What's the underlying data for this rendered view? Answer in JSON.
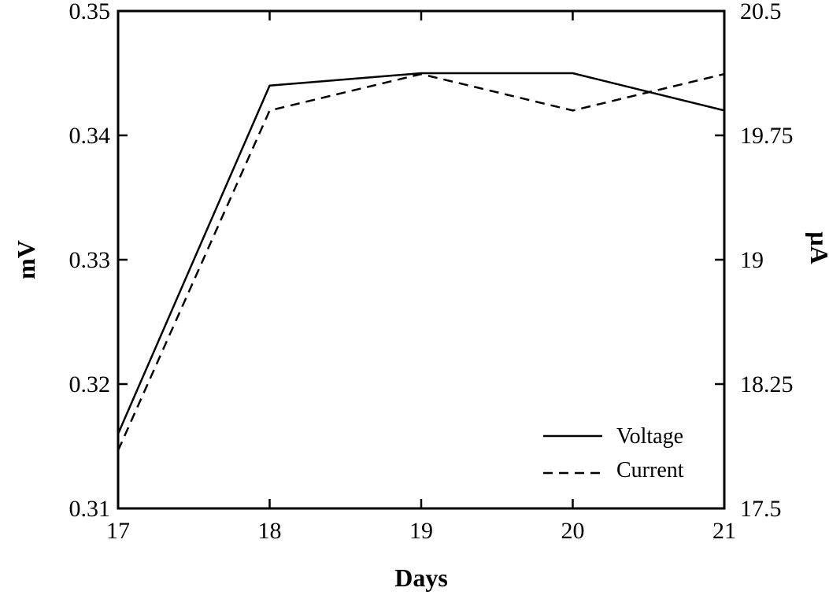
{
  "chart_data": {
    "type": "line",
    "xlabel": "Days",
    "ylabel_left": "mV",
    "ylabel_right": "µA",
    "x": [
      17,
      18,
      19,
      20,
      21
    ],
    "xlim": [
      17,
      21
    ],
    "ylim_left": [
      0.31,
      0.35
    ],
    "ylim_right": [
      17.5,
      20.5
    ],
    "xticks": [
      "17",
      "18",
      "19",
      "20",
      "21"
    ],
    "yticks_left": [
      "0.31",
      "0.32",
      "0.33",
      "0.34",
      "0.35"
    ],
    "yticks_right": [
      "17.5",
      "18.25",
      "19",
      "19.75",
      "20.5"
    ],
    "grid": false,
    "legend_position": "bottom-right",
    "series": [
      {
        "name": "Voltage",
        "axis": "left",
        "style": "solid",
        "values": [
          0.316,
          0.344,
          0.345,
          0.345,
          0.342
        ]
      },
      {
        "name": "Current",
        "axis": "right",
        "style": "dashed",
        "values": [
          17.85,
          19.9,
          20.12,
          19.9,
          20.12
        ]
      }
    ]
  }
}
